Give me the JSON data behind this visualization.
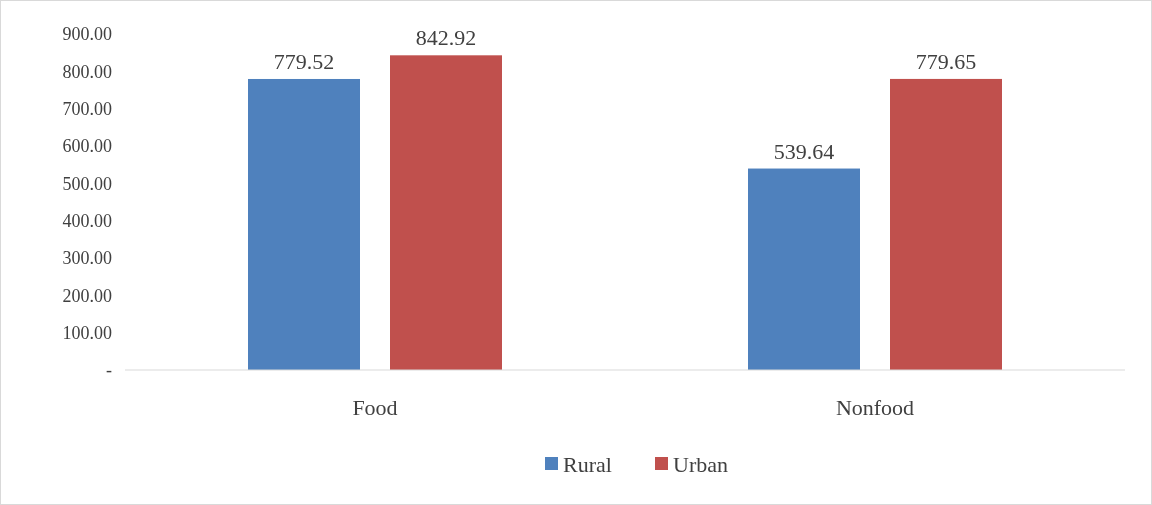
{
  "chart_data": {
    "type": "bar",
    "categories": [
      "Food",
      "Nonfood"
    ],
    "series": [
      {
        "name": "Rural",
        "color": "#4f81bd",
        "values": [
          779.52,
          539.64
        ]
      },
      {
        "name": "Urban",
        "color": "#c0504d",
        "values": [
          842.92,
          779.65
        ]
      }
    ],
    "ylim": [
      0,
      900
    ],
    "yticks": [
      {
        "value": 0,
        "label": "-"
      },
      {
        "value": 100,
        "label": "100.00"
      },
      {
        "value": 200,
        "label": "200.00"
      },
      {
        "value": 300,
        "label": "300.00"
      },
      {
        "value": 400,
        "label": "400.00"
      },
      {
        "value": 500,
        "label": "500.00"
      },
      {
        "value": 600,
        "label": "600.00"
      },
      {
        "value": 700,
        "label": "700.00"
      },
      {
        "value": 800,
        "label": "800.00"
      },
      {
        "value": 900,
        "label": "900.00"
      }
    ],
    "data_labels": true,
    "grid": false,
    "legend": "bottom"
  }
}
